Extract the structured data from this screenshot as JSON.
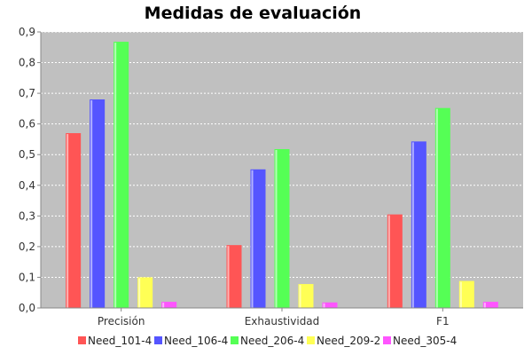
{
  "chart_data": {
    "type": "bar",
    "title": "Medidas de evaluación",
    "xlabel": "",
    "ylabel": "",
    "categories": [
      "Precisión",
      "Exhaustividad",
      "F1"
    ],
    "ylim": [
      0,
      0.9
    ],
    "yticks": [
      "0,0",
      "0,1",
      "0,2",
      "0,3",
      "0,4",
      "0,5",
      "0,6",
      "0,7",
      "0,8",
      "0,9"
    ],
    "grid": true,
    "legend_position": "bottom",
    "plot_background": "#c0c0c0",
    "series": [
      {
        "name": "Need_101-4",
        "color": "#ff5555",
        "values": [
          0.57,
          0.205,
          0.305
        ]
      },
      {
        "name": "Need_106-4",
        "color": "#5555ff",
        "values": [
          0.68,
          0.452,
          0.543
        ]
      },
      {
        "name": "Need_206-4",
        "color": "#55ff55",
        "values": [
          0.868,
          0.518,
          0.652
        ]
      },
      {
        "name": "Need_209-2",
        "color": "#ffff55",
        "values": [
          0.1,
          0.078,
          0.088
        ]
      },
      {
        "name": "Need_305-4",
        "color": "#ff55ff",
        "values": [
          0.02,
          0.018,
          0.02
        ]
      }
    ]
  }
}
